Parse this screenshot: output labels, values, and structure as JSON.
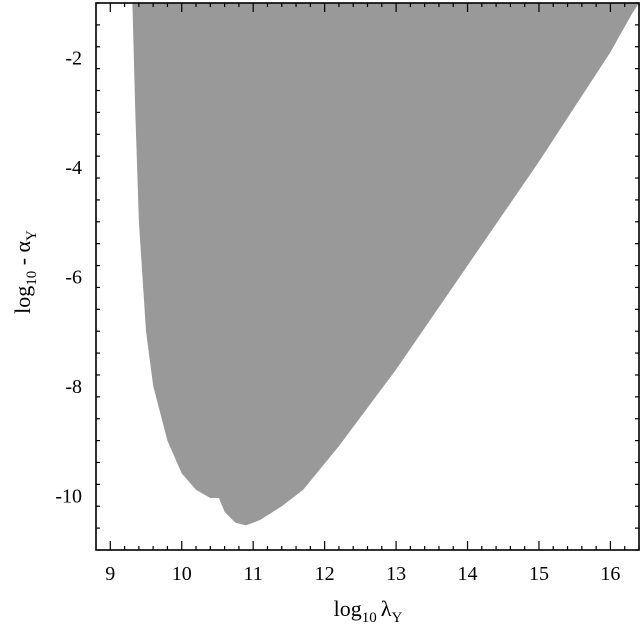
{
  "chart_data": {
    "type": "area",
    "title": "",
    "xlabel": {
      "prefix": "log",
      "sub": "10",
      "symbol": "λ",
      "symbol_sub": "Y"
    },
    "ylabel": {
      "prefix": "log",
      "sub": "10",
      "symbol": " - α",
      "symbol_sub": "Y"
    },
    "xlim": [
      8.8,
      16.4
    ],
    "ylim": [
      -11.0,
      -1.0
    ],
    "xticks": [
      9,
      10,
      11,
      12,
      13,
      14,
      15,
      16
    ],
    "xtick_labels": [
      "9",
      "10",
      "11",
      "12",
      "13",
      "14",
      "15",
      "16"
    ],
    "yticks": [
      -2,
      -4,
      -6,
      -8,
      -10
    ],
    "ytick_labels": [
      "-2",
      "-4",
      "-6",
      "-8",
      "-10"
    ],
    "grid": false,
    "fill_color": "#999999",
    "series": [
      {
        "region_boundary": [
          [
            9.31,
            -1.0
          ],
          [
            9.35,
            -3.0
          ],
          [
            9.4,
            -5.0
          ],
          [
            9.5,
            -7.0
          ],
          [
            9.6,
            -8.0
          ],
          [
            9.8,
            -9.0
          ],
          [
            10.0,
            -9.6
          ],
          [
            10.2,
            -9.9
          ],
          [
            10.4,
            -10.05
          ],
          [
            10.52,
            -10.05
          ],
          [
            10.6,
            -10.3
          ],
          [
            10.75,
            -10.5
          ],
          [
            10.9,
            -10.55
          ],
          [
            11.1,
            -10.45
          ],
          [
            11.4,
            -10.2
          ],
          [
            11.7,
            -9.9
          ],
          [
            12.2,
            -9.1
          ],
          [
            13.0,
            -7.7
          ],
          [
            14.0,
            -5.8
          ],
          [
            15.0,
            -3.9
          ],
          [
            15.5,
            -2.9
          ],
          [
            16.0,
            -1.9
          ],
          [
            16.3,
            -1.2
          ],
          [
            16.4,
            -1.0
          ]
        ]
      }
    ]
  }
}
